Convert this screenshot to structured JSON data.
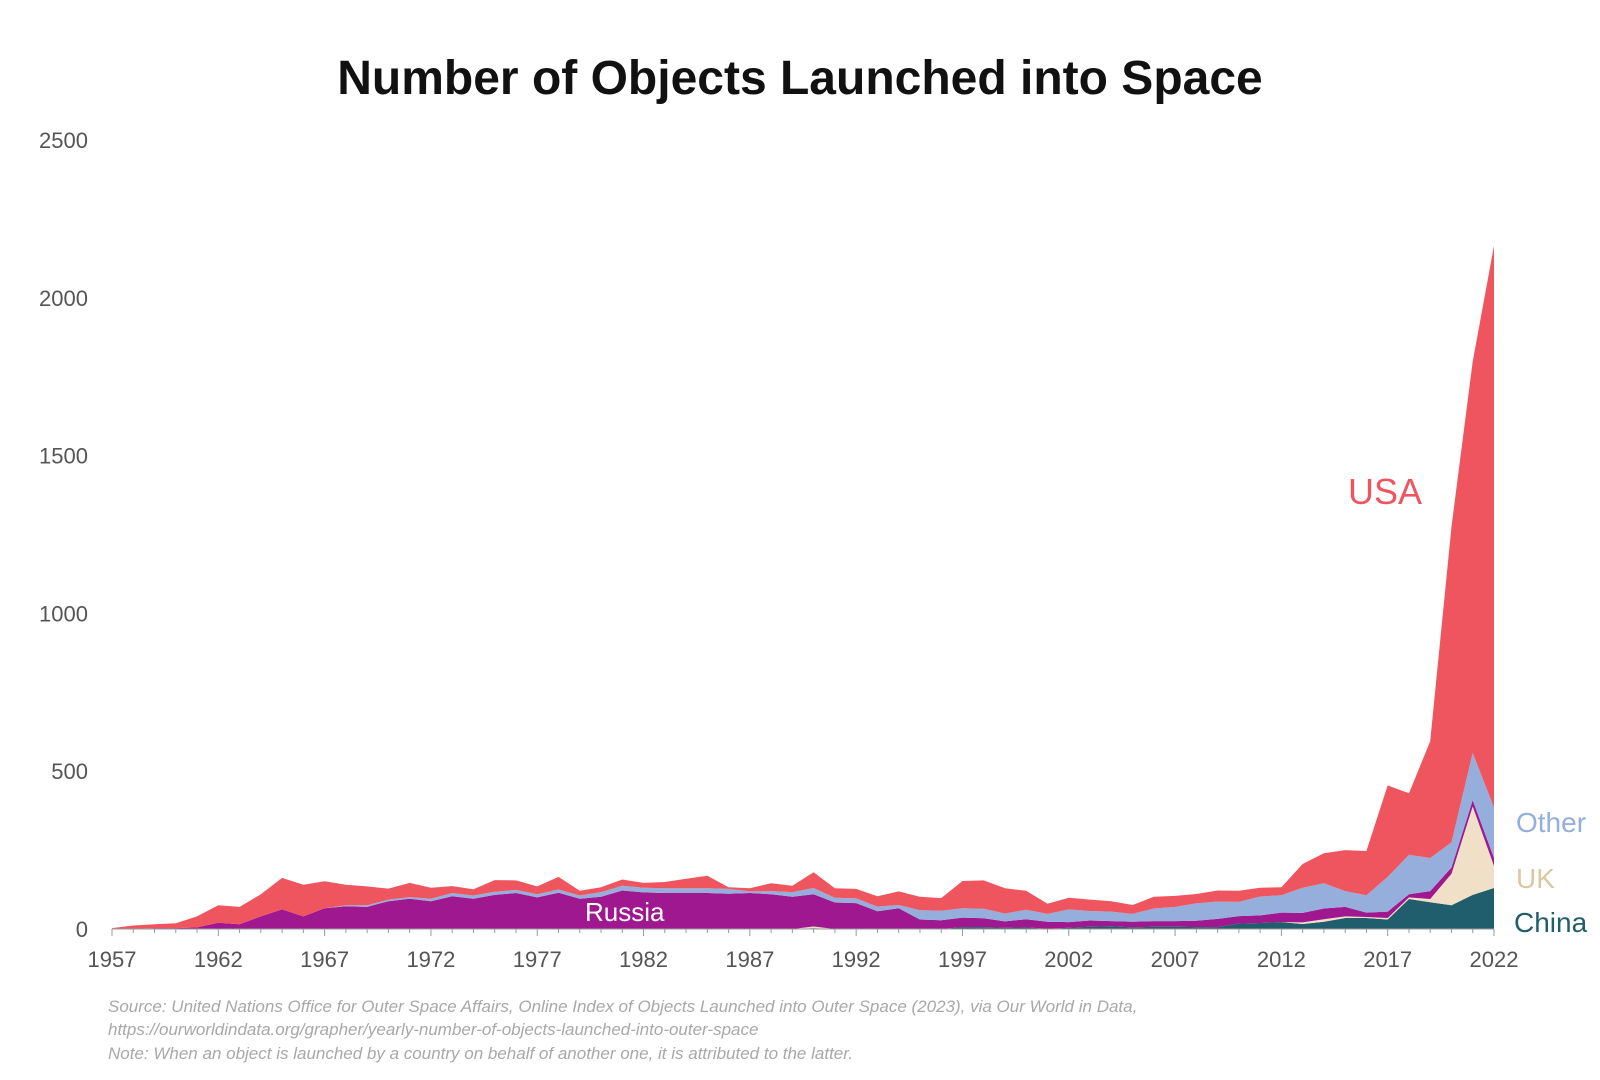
{
  "chart_data": {
    "type": "area",
    "stacked": true,
    "title": "Number of Objects Launched into Space",
    "xlabel": "",
    "ylabel": "",
    "xlim": [
      1957,
      2022
    ],
    "ylim": [
      0,
      2500
    ],
    "x_ticks": [
      1957,
      1962,
      1967,
      1972,
      1977,
      1982,
      1987,
      1992,
      1997,
      2002,
      2007,
      2012,
      2017,
      2022
    ],
    "y_ticks": [
      0,
      500,
      1000,
      1500,
      2000,
      2500
    ],
    "grid": false,
    "legend": "inline labels at right end of areas",
    "x": [
      1957,
      1958,
      1959,
      1960,
      1961,
      1962,
      1963,
      1964,
      1965,
      1966,
      1967,
      1968,
      1969,
      1970,
      1971,
      1972,
      1973,
      1974,
      1975,
      1976,
      1977,
      1978,
      1979,
      1980,
      1981,
      1982,
      1983,
      1984,
      1985,
      1986,
      1987,
      1988,
      1989,
      1990,
      1991,
      1992,
      1993,
      1994,
      1995,
      1996,
      1997,
      1998,
      1999,
      2000,
      2001,
      2002,
      2003,
      2004,
      2005,
      2006,
      2007,
      2008,
      2009,
      2010,
      2011,
      2012,
      2013,
      2014,
      2015,
      2016,
      2017,
      2018,
      2019,
      2020,
      2021,
      2022
    ],
    "series": [
      {
        "name": "China",
        "color": "#215e6d",
        "values": [
          0,
          0,
          0,
          0,
          0,
          0,
          0,
          0,
          0,
          0,
          0,
          0,
          0,
          0,
          0,
          0,
          0,
          0,
          0,
          0,
          0,
          0,
          0,
          0,
          0,
          0,
          0,
          0,
          0,
          0,
          0,
          0,
          0,
          3,
          0,
          0,
          0,
          0,
          0,
          0,
          6,
          6,
          4,
          5,
          1,
          4,
          7,
          9,
          5,
          7,
          7,
          6,
          6,
          17,
          19,
          22,
          16,
          23,
          35,
          35,
          30,
          95,
          85,
          75,
          108,
          130
        ]
      },
      {
        "name": "UK",
        "color": "#f0e0c8",
        "values": [
          0,
          0,
          0,
          0,
          0,
          0,
          0,
          0,
          0,
          0,
          0,
          0,
          0,
          0,
          0,
          0,
          0,
          0,
          0,
          0,
          0,
          0,
          0,
          0,
          0,
          0,
          0,
          0,
          0,
          0,
          0,
          0,
          0,
          5,
          0,
          0,
          0,
          0,
          0,
          0,
          0,
          0,
          0,
          0,
          0,
          0,
          0,
          0,
          0,
          0,
          0,
          0,
          0,
          0,
          0,
          0,
          5,
          8,
          5,
          3,
          5,
          5,
          10,
          100,
          280,
          70
        ]
      },
      {
        "name": "Russia",
        "color": "#a0188f",
        "values": [
          2,
          1,
          3,
          3,
          5,
          20,
          15,
          40,
          62,
          40,
          66,
          72,
          70,
          88,
          96,
          88,
          104,
          96,
          108,
          114,
          100,
          115,
          96,
          102,
          122,
          116,
          114,
          114,
          114,
          112,
          114,
          110,
          102,
          102,
          84,
          82,
          56,
          66,
          30,
          28,
          30,
          28,
          20,
          26,
          22,
          18,
          20,
          16,
          18,
          18,
          18,
          20,
          26,
          24,
          24,
          30,
          30,
          34,
          30,
          14,
          20,
          10,
          25,
          20,
          20,
          25
        ]
      },
      {
        "name": "Other",
        "color": "#95aedc",
        "values": [
          0,
          0,
          0,
          0,
          0,
          0,
          0,
          0,
          0,
          0,
          0,
          3,
          5,
          5,
          5,
          8,
          10,
          10,
          10,
          10,
          10,
          10,
          10,
          15,
          15,
          15,
          15,
          15,
          15,
          15,
          5,
          10,
          15,
          20,
          15,
          15,
          15,
          10,
          30,
          30,
          30,
          30,
          25,
          30,
          25,
          40,
          30,
          30,
          25,
          40,
          45,
          55,
          55,
          45,
          60,
          55,
          80,
          80,
          50,
          55,
          110,
          125,
          105,
          80,
          150,
          160
        ]
      },
      {
        "name": "USA",
        "color": "#ef555f",
        "values": [
          1,
          10,
          12,
          15,
          35,
          55,
          55,
          70,
          100,
          100,
          85,
          65,
          60,
          35,
          45,
          35,
          22,
          20,
          37,
          30,
          25,
          40,
          15,
          15,
          20,
          15,
          20,
          30,
          40,
          5,
          10,
          25,
          20,
          50,
          30,
          30,
          33,
          43,
          42,
          40,
          86,
          90,
          80,
          60,
          32,
          37,
          36,
          33,
          28,
          37,
          35,
          30,
          35,
          35,
          28,
          25,
          75,
          95,
          130,
          140,
          290,
          195,
          370,
          1000,
          1240,
          1780
        ]
      }
    ],
    "annotations": [
      {
        "text": "USA",
        "color": "#ef555f"
      },
      {
        "text": "Other",
        "color": "#95aedc"
      },
      {
        "text": "UK",
        "color": "#d8c9a3"
      },
      {
        "text": "China",
        "color": "#215e6d"
      },
      {
        "text": "Russia",
        "color": "#ffffff"
      }
    ],
    "source_lines": [
      "Source: United Nations Office for Outer Space Affairs, Online Index of Objects Launched into Outer Space (2023), via Our World in Data,",
      "https://ourworldindata.org/grapher/yearly-number-of-objects-launched-into-outer-space",
      "Note: When an object is launched by a country on behalf of another one, it is attributed to the latter."
    ]
  }
}
